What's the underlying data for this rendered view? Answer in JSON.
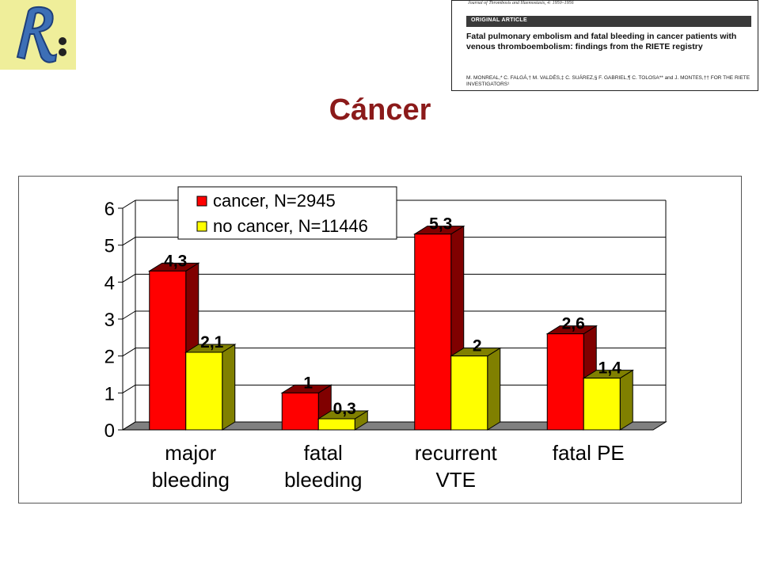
{
  "header": {
    "slide_title": "Cáncer",
    "article": {
      "journal": "Journal of Thrombosis and Haemostasis, 4: 1950–1956",
      "section_label": "ORIGINAL ARTICLE",
      "title": "Fatal pulmonary embolism and fatal bleeding in cancer patients with venous thromboembolism: findings from the RIETE registry",
      "authors": "M. MONREAL,* C. FALGÁ,† M. VALDÉS,‡ C. SUÁREZ,§ F. GABRIEL,¶ C. TOLOSA** and J. MONTES,†† FOR THE RIETE INVESTIGATORS¹"
    }
  },
  "colors": {
    "title": "#8b1a1a",
    "cancer": "#ff0000",
    "cancer_side": "#800000",
    "no_cancer": "#ffff00",
    "no_cancer_side": "#808000",
    "floor": "#808080"
  },
  "chart_data": {
    "type": "bar",
    "categories": [
      [
        "major",
        "bleeding"
      ],
      [
        "fatal",
        "bleeding"
      ],
      [
        "recurrent",
        "VTE"
      ],
      [
        "fatal PE"
      ]
    ],
    "series": [
      {
        "name": "cancer, N=2945",
        "values": [
          4.3,
          1,
          5.3,
          2.6
        ],
        "labels": [
          "4,3",
          "1",
          "5,3",
          "2,6"
        ]
      },
      {
        "name": "no cancer, N=11446",
        "values": [
          2.1,
          0.3,
          2,
          1.4
        ],
        "labels": [
          "2,1",
          "0,3",
          "2",
          "1,4"
        ]
      }
    ],
    "y_ticks": [
      "0",
      "1",
      "2",
      "3",
      "4",
      "5",
      "6"
    ],
    "ylim": [
      0,
      6
    ],
    "grid": true,
    "legend_position": "top-left",
    "style": "3d-clustered-bar"
  }
}
